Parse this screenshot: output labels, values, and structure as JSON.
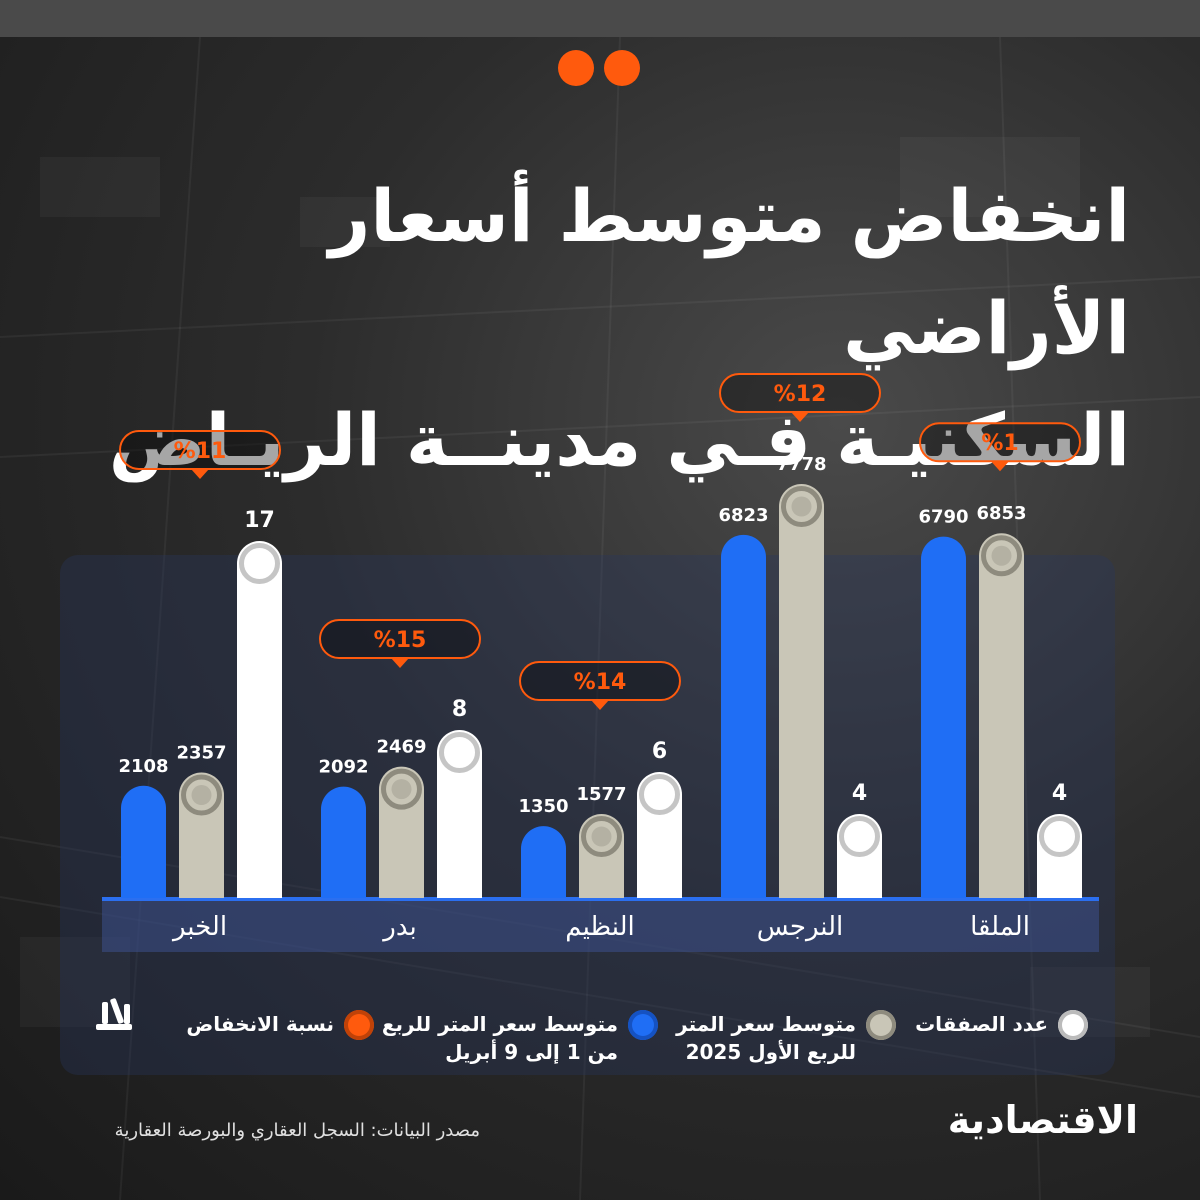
{
  "title_lines": [
    "انخفاض متوسط أسعار الأراضي",
    "السكنيـة فـي مدينــة الريـاض"
  ],
  "brand": "الاقتصادية",
  "source": "مصدر البيانات: السجل العقاري والبورصة العقارية",
  "colors": {
    "accent": "#ff5a0d",
    "blue": "#1f6ef5",
    "beige": "#c9c6b7",
    "white": "#ffffff",
    "axis": "#2b6ff0"
  },
  "legend": [
    {
      "key": "count",
      "label": "عدد الصفقات",
      "color": "#ffffff"
    },
    {
      "key": "q1",
      "label": "متوسط سعر المتر\nللربع الأول 2025",
      "color": "#c9c6b7"
    },
    {
      "key": "q2",
      "label": "متوسط سعر المتر للربع\nمن 1 إلى 9 أبريل",
      "color": "#1f6ef5"
    },
    {
      "key": "drop",
      "label": "نسبة الانخفاض",
      "color": "#ff5a0d"
    }
  ],
  "chart_data": {
    "type": "bar",
    "categories": [
      "الملقا",
      "النرجس",
      "النظيم",
      "بدر",
      "الخبر"
    ],
    "series": [
      {
        "name": "متوسط سعر المتر للربع من 1 إلى 9 أبريل",
        "key": "q2",
        "values": [
          6790,
          6823,
          1350,
          2092,
          2108
        ]
      },
      {
        "name": "متوسط سعر المتر للربع الأول 2025",
        "key": "q1",
        "values": [
          6853,
          7778,
          1577,
          2469,
          2357
        ]
      },
      {
        "name": "عدد الصفقات",
        "key": "count",
        "values": [
          4,
          4,
          6,
          8,
          17
        ]
      }
    ],
    "drop_percent_labels": [
      "%1",
      "%12",
      "%14",
      "%15",
      "%11"
    ],
    "value_labels": {
      "q2": [
        "6790",
        "6823",
        "1350",
        "2092",
        "2108"
      ],
      "q1": [
        "6853",
        "7778",
        "1577",
        "2469",
        "2357"
      ],
      "count": [
        "4",
        "4",
        "6",
        "8",
        "17"
      ]
    }
  }
}
